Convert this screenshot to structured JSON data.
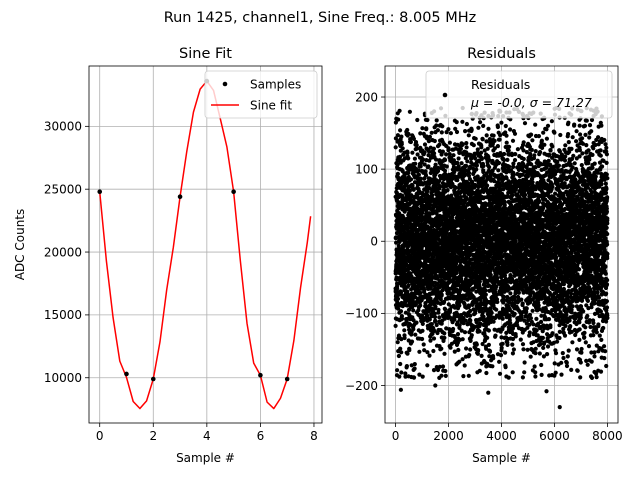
{
  "suptitle": "Run 1425, channel1, Sine Freq.: 8.005 MHz",
  "chart_data": [
    {
      "type": "line",
      "title": "Sine Fit",
      "xlabel": "Sample #",
      "ylabel": "ADC Counts",
      "xlim": [
        -0.4,
        8.3
      ],
      "ylim": [
        6400,
        34800
      ],
      "xticks": [
        0,
        2,
        4,
        6,
        8
      ],
      "yticks": [
        10000,
        15000,
        20000,
        25000,
        30000
      ],
      "grid": true,
      "legend_position": "top-right",
      "series": [
        {
          "name": "Samples",
          "kind": "scatter",
          "color": "#000000",
          "x": [
            0,
            1,
            2,
            3,
            4,
            5,
            6,
            7
          ],
          "y": [
            24800,
            10300,
            9900,
            24400,
            33600,
            24800,
            10200,
            9900
          ]
        },
        {
          "name": "Sine fit",
          "kind": "line",
          "color": "#ff0000",
          "x": [
            0,
            0.25,
            0.5,
            0.75,
            1,
            1.25,
            1.5,
            1.75,
            2,
            2.25,
            2.5,
            2.75,
            3,
            3.25,
            3.5,
            3.75,
            4,
            4.25,
            4.5,
            4.75,
            5,
            5.25,
            5.5,
            5.75,
            6,
            6.25,
            6.5,
            6.75,
            7,
            7.25,
            7.5,
            7.75,
            7.875
          ],
          "y": [
            24800,
            19280,
            14770,
            11320,
            10030,
            8110,
            7550,
            8160,
            9900,
            12850,
            16980,
            20390,
            24400,
            27990,
            31130,
            32960,
            33600,
            32860,
            30630,
            28350,
            24800,
            19320,
            14330,
            11160,
            10200,
            8060,
            7550,
            8370,
            9900,
            12960,
            17180,
            20750,
            22850
          ]
        }
      ]
    },
    {
      "type": "scatter",
      "title": "Residuals",
      "xlabel": "Sample #",
      "ylabel": "",
      "xlim": [
        -400,
        8400
      ],
      "ylim": [
        -252,
        243
      ],
      "xticks": [
        0,
        2000,
        4000,
        6000,
        8000
      ],
      "yticks": [
        -200,
        -100,
        0,
        100,
        200
      ],
      "grid": true,
      "legend_position": "top-right",
      "series": [
        {
          "name": "Residuals",
          "legend_stats": "μ = -0.0, σ = 71.27",
          "color": "#000000",
          "n_points": 8000,
          "mean": 0.0,
          "std": 71.27,
          "x_range": [
            0,
            8000
          ],
          "outliers": [
            [
              3500,
              -210
            ],
            [
              6200,
              -230
            ],
            [
              5700,
              -208
            ],
            [
              200,
              -206
            ],
            [
              1500,
              -200
            ]
          ]
        }
      ]
    }
  ]
}
